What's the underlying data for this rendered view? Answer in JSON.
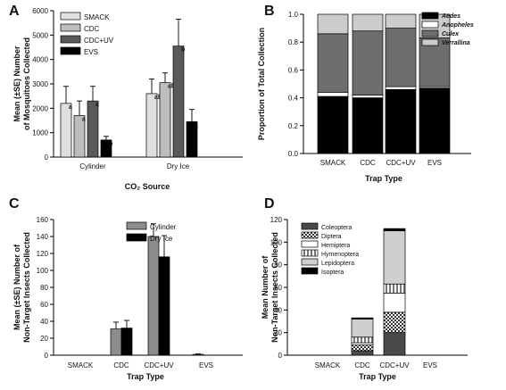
{
  "chart_data": [
    {
      "panel": "A",
      "type": "bar",
      "ylabel": "Mean (±SE) Number of Mosquitoes Collected",
      "xlabel": "CO₂ Source",
      "ylim": [
        0,
        6000
      ],
      "yticks": [
        "0",
        "1000",
        "2000",
        "3000",
        "4000",
        "5000",
        "6000"
      ],
      "categories": [
        "Cylinder",
        "Dry Ice"
      ],
      "legend_position": "top-left",
      "series": [
        {
          "name": "SMACK",
          "color": "#e0e0e0",
          "values": [
            2200,
            2600
          ],
          "errors": [
            700,
            600
          ],
          "labels": [
            "a",
            "ab"
          ]
        },
        {
          "name": "CDC",
          "color": "#bdbdbd",
          "values": [
            1700,
            3050
          ],
          "errors": [
            600,
            400
          ],
          "labels": [
            "a",
            "ab"
          ]
        },
        {
          "name": "CDC+UV",
          "color": "#5a5a5a",
          "values": [
            2300,
            4550
          ],
          "errors": [
            600,
            1100
          ],
          "labels": [
            "a",
            "b"
          ]
        },
        {
          "name": "EVS",
          "color": "#000000",
          "values": [
            700,
            1450
          ],
          "errors": [
            150,
            500
          ],
          "labels": [
            "b",
            "a"
          ]
        }
      ]
    },
    {
      "panel": "B",
      "type": "bar",
      "stacked": true,
      "ylabel": "Proportion of Total Collection",
      "xlabel": "Trap Type",
      "ylim": [
        0,
        1.0
      ],
      "yticks": [
        "0.0",
        "0.2",
        "0.4",
        "0.6",
        "0.8",
        "1.0"
      ],
      "categories": [
        "SMACK",
        "CDC",
        "CDC+UV",
        "EVS"
      ],
      "legend_position": "top-right",
      "series": [
        {
          "name": "Aedes",
          "color": "#000000",
          "values": [
            0.41,
            0.4,
            0.46,
            0.47
          ]
        },
        {
          "name": "Anopheles",
          "color": "#ffffff",
          "values": [
            0.03,
            0.02,
            0.02,
            0.01
          ]
        },
        {
          "name": "Culex",
          "color": "#6e6e6e",
          "values": [
            0.42,
            0.46,
            0.42,
            0.35
          ]
        },
        {
          "name": "Verrallina",
          "color": "#cccccc",
          "values": [
            0.14,
            0.12,
            0.1,
            0.17
          ]
        }
      ]
    },
    {
      "panel": "C",
      "type": "bar",
      "ylabel": "Mean (±SE) Number of Non-Target Insects Collected",
      "xlabel": "Trap Type",
      "ylim": [
        0,
        160
      ],
      "yticks": [
        "0",
        "20",
        "40",
        "60",
        "80",
        "100",
        "120",
        "140",
        "160"
      ],
      "categories": [
        "SMACK",
        "CDC",
        "CDC+UV",
        "EVS"
      ],
      "legend_position": "top-right",
      "series": [
        {
          "name": "Cylinder",
          "color": "#8c8c8c",
          "values": [
            0,
            31,
            140,
            1
          ],
          "errors": [
            0,
            8,
            15,
            0.5
          ]
        },
        {
          "name": "Dry Ice",
          "color": "#000000",
          "values": [
            0,
            32,
            116,
            0
          ],
          "errors": [
            0,
            9,
            25,
            0
          ]
        }
      ]
    },
    {
      "panel": "D",
      "type": "bar",
      "stacked": true,
      "ylabel": "Mean Number of Non-Target Insects Collected",
      "xlabel": "Trap Type",
      "ylim": [
        0,
        120
      ],
      "yticks": [
        "0",
        "20",
        "40",
        "60",
        "80",
        "100",
        "120"
      ],
      "categories": [
        "SMACK",
        "CDC",
        "CDC+UV",
        "EVS"
      ],
      "legend_position": "top-left",
      "series": [
        {
          "name": "Coleoptera",
          "color": "#4a4a4a",
          "pattern": "solid",
          "values": [
            0,
            4,
            20,
            0
          ]
        },
        {
          "name": "Diptera",
          "color": "#555555",
          "pattern": "check",
          "values": [
            0,
            5,
            18,
            0
          ]
        },
        {
          "name": "Hemiptera",
          "color": "#ffffff",
          "pattern": "solid",
          "values": [
            0,
            2,
            17,
            0
          ]
        },
        {
          "name": "Hymenoptera",
          "color": "#aaaaaa",
          "pattern": "vlines",
          "values": [
            0,
            5,
            8,
            0
          ]
        },
        {
          "name": "Lepidoptera",
          "color": "#cfcfcf",
          "pattern": "solid",
          "values": [
            0,
            16,
            47,
            0
          ]
        },
        {
          "name": "Isoptera",
          "color": "#000000",
          "pattern": "solid",
          "values": [
            0,
            1,
            2,
            0
          ]
        }
      ]
    }
  ]
}
